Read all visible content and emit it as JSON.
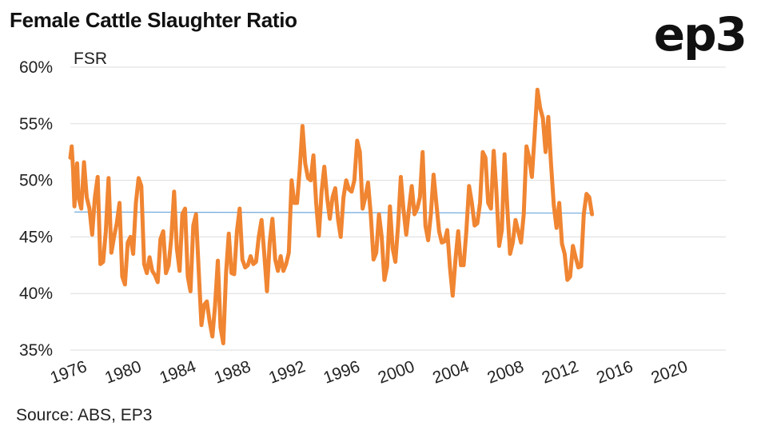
{
  "title": "Female Cattle Slaughter Ratio",
  "logo": "ep3",
  "source": "Source: ABS, EP3",
  "chart_data": {
    "type": "line",
    "title": "Female Cattle Slaughter Ratio",
    "ylabel": "FSR",
    "xlabel": "",
    "ylim": [
      35,
      60
    ],
    "xlim": [
      1976,
      2024
    ],
    "yticks": [
      "60%",
      "55%",
      "50%",
      "45%",
      "40%",
      "35%"
    ],
    "ytick_values": [
      60,
      55,
      50,
      45,
      40,
      35
    ],
    "xticks": [
      "1976",
      "1980",
      "1984",
      "1988",
      "1992",
      "1996",
      "2000",
      "2004",
      "2008",
      "2012",
      "2016",
      "2020"
    ],
    "xtick_values": [
      1976,
      1980,
      1984,
      1988,
      1992,
      1996,
      2000,
      2004,
      2008,
      2012,
      2016,
      2020
    ],
    "grid": "horizontal",
    "colors": {
      "series": "#F08532",
      "average": "#6FA8DC",
      "grid": "#dddddd"
    },
    "series": [
      {
        "values": [
          [
            1976.0,
            52.0
          ],
          [
            1976.1,
            53.0
          ],
          [
            1976.2,
            51.0
          ],
          [
            1976.3,
            47.7
          ],
          [
            1976.5,
            51.5
          ],
          [
            1976.6,
            48.5
          ],
          [
            1976.8,
            47.5
          ],
          [
            1977.0,
            51.6
          ],
          [
            1977.2,
            48.5
          ],
          [
            1977.4,
            47.5
          ],
          [
            1977.6,
            45.2
          ],
          [
            1977.8,
            48.5
          ],
          [
            1978.0,
            50.3
          ],
          [
            1978.2,
            42.6
          ],
          [
            1978.4,
            42.8
          ],
          [
            1978.6,
            45.5
          ],
          [
            1978.8,
            50.2
          ],
          [
            1979.0,
            43.6
          ],
          [
            1979.2,
            45.0
          ],
          [
            1979.4,
            46.2
          ],
          [
            1979.6,
            48.0
          ],
          [
            1979.8,
            41.5
          ],
          [
            1980.0,
            40.8
          ],
          [
            1980.2,
            44.5
          ],
          [
            1980.4,
            45.0
          ],
          [
            1980.6,
            43.5
          ],
          [
            1980.8,
            48.0
          ],
          [
            1981.0,
            50.2
          ],
          [
            1981.2,
            49.5
          ],
          [
            1981.4,
            42.6
          ],
          [
            1981.6,
            41.8
          ],
          [
            1981.8,
            43.2
          ],
          [
            1982.0,
            42.0
          ],
          [
            1982.2,
            41.6
          ],
          [
            1982.4,
            41.0
          ],
          [
            1982.6,
            44.8
          ],
          [
            1982.8,
            45.5
          ],
          [
            1983.0,
            41.8
          ],
          [
            1983.2,
            42.5
          ],
          [
            1983.4,
            45.0
          ],
          [
            1983.6,
            49.0
          ],
          [
            1983.8,
            44.0
          ],
          [
            1984.0,
            42.0
          ],
          [
            1984.2,
            47.0
          ],
          [
            1984.4,
            47.5
          ],
          [
            1984.6,
            41.5
          ],
          [
            1984.8,
            40.2
          ],
          [
            1985.0,
            46.0
          ],
          [
            1985.2,
            47.0
          ],
          [
            1985.4,
            42.0
          ],
          [
            1985.6,
            37.2
          ],
          [
            1985.8,
            39.0
          ],
          [
            1986.0,
            39.3
          ],
          [
            1986.2,
            37.5
          ],
          [
            1986.4,
            36.2
          ],
          [
            1986.6,
            39.0
          ],
          [
            1986.8,
            42.9
          ],
          [
            1987.0,
            37.0
          ],
          [
            1987.2,
            35.6
          ],
          [
            1987.4,
            41.8
          ],
          [
            1987.6,
            45.3
          ],
          [
            1987.8,
            41.8
          ],
          [
            1988.0,
            41.7
          ],
          [
            1988.2,
            45.5
          ],
          [
            1988.4,
            47.5
          ],
          [
            1988.6,
            43.0
          ],
          [
            1988.8,
            42.3
          ],
          [
            1989.0,
            42.5
          ],
          [
            1989.2,
            43.3
          ],
          [
            1989.4,
            42.6
          ],
          [
            1989.6,
            42.8
          ],
          [
            1989.8,
            45.0
          ],
          [
            1990.0,
            46.5
          ],
          [
            1990.2,
            43.5
          ],
          [
            1990.4,
            40.2
          ],
          [
            1990.6,
            44.5
          ],
          [
            1990.8,
            46.6
          ],
          [
            1991.0,
            43.0
          ],
          [
            1991.2,
            42.0
          ],
          [
            1991.4,
            43.3
          ],
          [
            1991.6,
            42.0
          ],
          [
            1991.8,
            42.6
          ],
          [
            1992.0,
            43.6
          ],
          [
            1992.2,
            50.0
          ],
          [
            1992.4,
            48.0
          ],
          [
            1992.6,
            48.0
          ],
          [
            1992.8,
            51.0
          ],
          [
            1993.0,
            54.8
          ],
          [
            1993.2,
            51.5
          ],
          [
            1993.4,
            50.2
          ],
          [
            1993.6,
            50.0
          ],
          [
            1993.8,
            52.2
          ],
          [
            1994.0,
            48.0
          ],
          [
            1994.2,
            45.1
          ],
          [
            1994.4,
            49.0
          ],
          [
            1994.6,
            51.2
          ],
          [
            1994.8,
            48.5
          ],
          [
            1995.0,
            46.6
          ],
          [
            1995.2,
            48.5
          ],
          [
            1995.4,
            49.3
          ],
          [
            1995.6,
            46.6
          ],
          [
            1995.8,
            45.0
          ],
          [
            1996.0,
            48.5
          ],
          [
            1996.2,
            50.0
          ],
          [
            1996.4,
            49.2
          ],
          [
            1996.6,
            49.0
          ],
          [
            1996.8,
            50.0
          ],
          [
            1997.0,
            53.5
          ],
          [
            1997.2,
            52.5
          ],
          [
            1997.4,
            47.5
          ],
          [
            1997.6,
            48.5
          ],
          [
            1997.8,
            49.8
          ],
          [
            1998.0,
            47.0
          ],
          [
            1998.2,
            43.0
          ],
          [
            1998.4,
            43.6
          ],
          [
            1998.6,
            47.0
          ],
          [
            1998.8,
            45.0
          ],
          [
            1999.0,
            41.2
          ],
          [
            1999.2,
            42.4
          ],
          [
            1999.4,
            47.7
          ],
          [
            1999.6,
            44.0
          ],
          [
            1999.8,
            42.8
          ],
          [
            2000.0,
            46.0
          ],
          [
            2000.2,
            50.3
          ],
          [
            2000.4,
            47.4
          ],
          [
            2000.6,
            45.2
          ],
          [
            2000.8,
            47.5
          ],
          [
            2001.0,
            49.5
          ],
          [
            2001.2,
            47.0
          ],
          [
            2001.4,
            47.5
          ],
          [
            2001.6,
            48.5
          ],
          [
            2001.8,
            52.5
          ],
          [
            2002.0,
            46.0
          ],
          [
            2002.2,
            44.7
          ],
          [
            2002.4,
            47.0
          ],
          [
            2002.6,
            50.5
          ],
          [
            2002.8,
            48.0
          ],
          [
            2003.0,
            45.5
          ],
          [
            2003.2,
            44.5
          ],
          [
            2003.4,
            44.6
          ],
          [
            2003.6,
            45.6
          ],
          [
            2003.8,
            42.3
          ],
          [
            2004.0,
            39.8
          ],
          [
            2004.2,
            43.0
          ],
          [
            2004.4,
            45.5
          ],
          [
            2004.6,
            42.5
          ],
          [
            2004.8,
            42.5
          ],
          [
            2005.0,
            45.5
          ],
          [
            2005.2,
            49.5
          ],
          [
            2005.4,
            48.0
          ],
          [
            2005.6,
            46.0
          ],
          [
            2005.8,
            46.2
          ],
          [
            2006.0,
            48.0
          ],
          [
            2006.2,
            52.5
          ],
          [
            2006.4,
            52.0
          ],
          [
            2006.6,
            48.0
          ],
          [
            2006.8,
            47.5
          ],
          [
            2007.0,
            52.6
          ],
          [
            2007.2,
            49.0
          ],
          [
            2007.4,
            44.2
          ],
          [
            2007.6,
            45.6
          ],
          [
            2007.8,
            52.3
          ],
          [
            2008.0,
            47.5
          ],
          [
            2008.2,
            43.5
          ],
          [
            2008.4,
            44.5
          ],
          [
            2008.6,
            46.5
          ],
          [
            2008.8,
            45.5
          ],
          [
            2009.0,
            44.5
          ],
          [
            2009.2,
            47.0
          ],
          [
            2009.4,
            53.0
          ],
          [
            2009.6,
            52.0
          ],
          [
            2009.8,
            50.3
          ],
          [
            2010.0,
            54.0
          ],
          [
            2010.2,
            58.0
          ],
          [
            2010.4,
            56.4
          ],
          [
            2010.6,
            55.5
          ],
          [
            2010.8,
            52.5
          ],
          [
            2011.0,
            55.6
          ],
          [
            2011.2,
            51.5
          ],
          [
            2011.4,
            47.8
          ],
          [
            2011.6,
            45.8
          ],
          [
            2011.8,
            48.0
          ],
          [
            2012.0,
            44.4
          ],
          [
            2012.2,
            43.5
          ],
          [
            2012.4,
            41.2
          ],
          [
            2012.6,
            41.5
          ],
          [
            2012.8,
            44.2
          ],
          [
            2013.0,
            43.2
          ],
          [
            2013.2,
            42.3
          ],
          [
            2013.4,
            42.4
          ],
          [
            2013.6,
            47.0
          ],
          [
            2013.8,
            48.8
          ],
          [
            2014.0,
            48.5
          ],
          [
            2014.2,
            47.0
          ]
        ]
      },
      {
        "name": "",
        "values": [
          [
            1976.3,
            47.2
          ],
          [
            2014.2,
            47.1
          ]
        ]
      }
    ]
  }
}
